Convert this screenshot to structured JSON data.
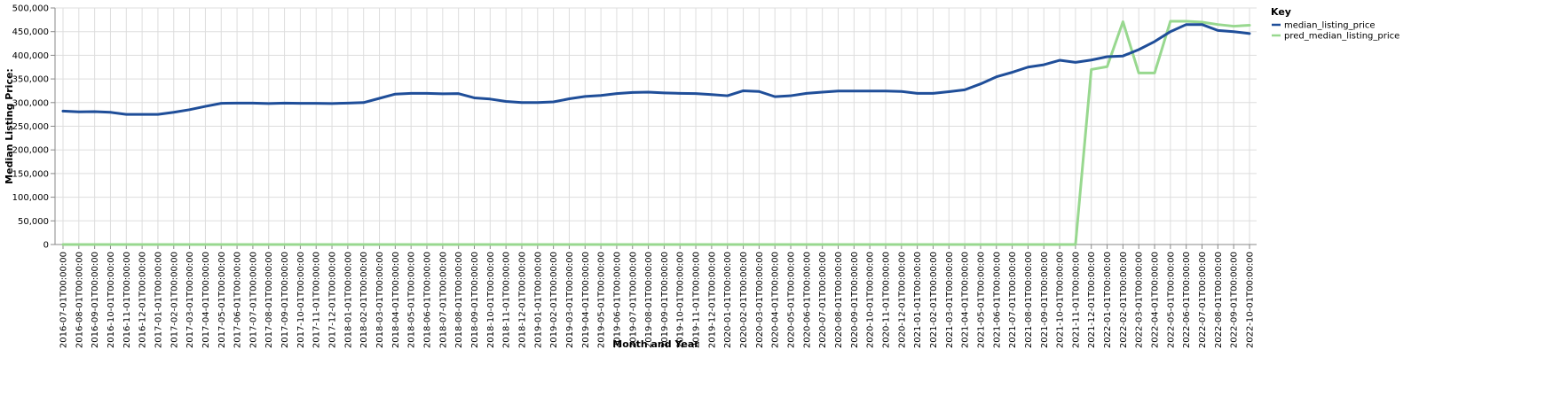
{
  "chart_data": {
    "type": "line",
    "xlabel": "Month and Year",
    "ylabel": "Median Listing Price:",
    "ylim": [
      0,
      500000
    ],
    "yticks": [
      "0",
      "50,000",
      "100,000",
      "150,000",
      "200,000",
      "250,000",
      "300,000",
      "350,000",
      "400,000",
      "450,000",
      "500,000"
    ],
    "grid": true,
    "legend": {
      "title": "Key",
      "position": "right"
    },
    "x": [
      "2016-07-01T00:00:00",
      "2016-08-01T00:00:00",
      "2016-09-01T00:00:00",
      "2016-10-01T00:00:00",
      "2016-11-01T00:00:00",
      "2016-12-01T00:00:00",
      "2017-01-01T00:00:00",
      "2017-02-01T00:00:00",
      "2017-03-01T00:00:00",
      "2017-04-01T00:00:00",
      "2017-05-01T00:00:00",
      "2017-06-01T00:00:00",
      "2017-07-01T00:00:00",
      "2017-08-01T00:00:00",
      "2017-09-01T00:00:00",
      "2017-10-01T00:00:00",
      "2017-11-01T00:00:00",
      "2017-12-01T00:00:00",
      "2018-01-01T00:00:00",
      "2018-02-01T00:00:00",
      "2018-03-01T00:00:00",
      "2018-04-01T00:00:00",
      "2018-05-01T00:00:00",
      "2018-06-01T00:00:00",
      "2018-07-01T00:00:00",
      "2018-08-01T00:00:00",
      "2018-09-01T00:00:00",
      "2018-10-01T00:00:00",
      "2018-11-01T00:00:00",
      "2018-12-01T00:00:00",
      "2019-01-01T00:00:00",
      "2019-02-01T00:00:00",
      "2019-03-01T00:00:00",
      "2019-04-01T00:00:00",
      "2019-05-01T00:00:00",
      "2019-06-01T00:00:00",
      "2019-07-01T00:00:00",
      "2019-08-01T00:00:00",
      "2019-09-01T00:00:00",
      "2019-10-01T00:00:00",
      "2019-11-01T00:00:00",
      "2019-12-01T00:00:00",
      "2020-01-01T00:00:00",
      "2020-02-01T00:00:00",
      "2020-03-01T00:00:00",
      "2020-04-01T00:00:00",
      "2020-05-01T00:00:00",
      "2020-06-01T00:00:00",
      "2020-07-01T00:00:00",
      "2020-08-01T00:00:00",
      "2020-09-01T00:00:00",
      "2020-10-01T00:00:00",
      "2020-11-01T00:00:00",
      "2020-12-01T00:00:00",
      "2021-01-01T00:00:00",
      "2021-02-01T00:00:00",
      "2021-03-01T00:00:00",
      "2021-04-01T00:00:00",
      "2021-05-01T00:00:00",
      "2021-06-01T00:00:00",
      "2021-07-01T00:00:00",
      "2021-08-01T00:00:00",
      "2021-09-01T00:00:00",
      "2021-10-01T00:00:00",
      "2021-11-01T00:00:00",
      "2021-12-01T00:00:00",
      "2022-01-01T00:00:00",
      "2022-02-01T00:00:00",
      "2022-03-01T00:00:00",
      "2022-04-01T00:00:00",
      "2022-05-01T00:00:00",
      "2022-06-01T00:00:00",
      "2022-07-01T00:00:00",
      "2022-08-01T00:00:00",
      "2022-09-01T00:00:00",
      "2022-10-01T00:00:00"
    ],
    "series": [
      {
        "name": "median_listing_price",
        "color": "#1f4e99",
        "values": [
          282000,
          280500,
          281000,
          279500,
          275000,
          275000,
          275000,
          279500,
          285000,
          292000,
          298500,
          299000,
          299000,
          298000,
          299000,
          298500,
          298500,
          298000,
          299000,
          300000,
          309000,
          318000,
          319500,
          319500,
          318500,
          319000,
          310000,
          307500,
          302500,
          300000,
          300000,
          301500,
          308000,
          313000,
          315000,
          319000,
          321500,
          322000,
          320500,
          319500,
          319000,
          317000,
          314500,
          325000,
          323500,
          312500,
          314500,
          319500,
          322000,
          324500,
          324500,
          324500,
          324500,
          323500,
          319500,
          319500,
          323000,
          327000,
          339500,
          354500,
          364000,
          375000,
          380000,
          389500,
          385000,
          390000,
          397000,
          398500,
          412000,
          429000,
          450000,
          465000,
          465000,
          452500,
          450000,
          446000
        ]
      },
      {
        "name": "pred_median_listing_price",
        "color": "#98d88f",
        "values": [
          0,
          0,
          0,
          0,
          0,
          0,
          0,
          0,
          0,
          0,
          0,
          0,
          0,
          0,
          0,
          0,
          0,
          0,
          0,
          0,
          0,
          0,
          0,
          0,
          0,
          0,
          0,
          0,
          0,
          0,
          0,
          0,
          0,
          0,
          0,
          0,
          0,
          0,
          0,
          0,
          0,
          0,
          0,
          0,
          0,
          0,
          0,
          0,
          0,
          0,
          0,
          0,
          0,
          0,
          0,
          0,
          0,
          0,
          0,
          0,
          0,
          0,
          0,
          0,
          0,
          370000,
          376000,
          471000,
          362500,
          362500,
          472000,
          472000,
          470000,
          465000,
          461500,
          463500
        ]
      }
    ]
  }
}
